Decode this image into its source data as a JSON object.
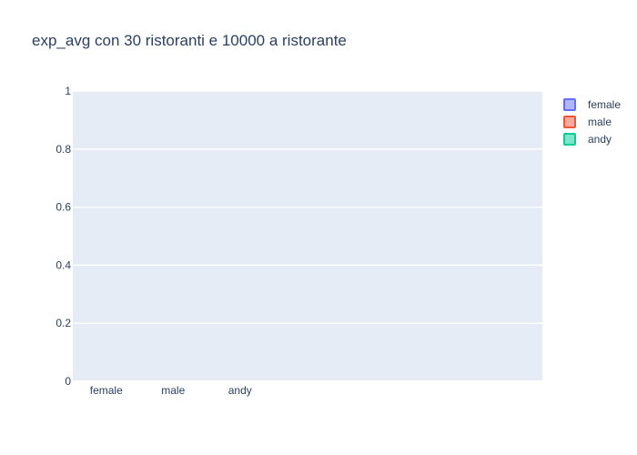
{
  "chart_data": {
    "type": "bar",
    "title": "exp_avg con 30 ristoranti e 10000 a ristorante",
    "categories": [
      "female",
      "male",
      "andy"
    ],
    "series": [
      {
        "name": "female",
        "values": [
          0,
          null,
          null
        ],
        "color": "#636efa"
      },
      {
        "name": "male",
        "values": [
          null,
          0,
          null
        ],
        "color": "#ef553b"
      },
      {
        "name": "andy",
        "values": [
          null,
          null,
          0
        ],
        "color": "#00cc96"
      }
    ],
    "ylim": [
      0,
      1
    ],
    "yticks": [
      "0",
      "0.2",
      "0.4",
      "0.6",
      "0.8",
      "1"
    ],
    "grid": true,
    "legend_position": "top-right",
    "plot_background": "#e5ecf6"
  }
}
